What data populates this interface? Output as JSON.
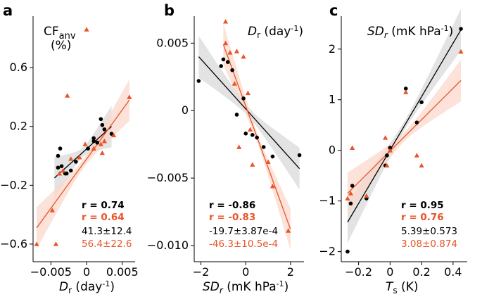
{
  "colors": {
    "black": "#000000",
    "orange": "#e8552a",
    "band_black": "#d9d9d9",
    "band_orange": "#fbd6c8"
  },
  "chart_data": [
    {
      "type": "scatter",
      "panel": "a",
      "title_main": "CF",
      "title_sub": "anv",
      "title_unit": "(%)",
      "xlabel_main": "D",
      "xlabel_sub": "r",
      "xlabel_unit": " (day",
      "xlabel_sup": "-1",
      "xlabel_close": ")",
      "xlim": [
        -0.0075,
        0.0068
      ],
      "ylim": [
        -0.72,
        0.95
      ],
      "xticks": [
        {
          "v": -0.005,
          "label": "−0.005"
        },
        {
          "v": 0.0,
          "label": "0"
        },
        {
          "v": 0.005,
          "label": "0.005"
        }
      ],
      "yticks": [
        {
          "v": -0.6,
          "label": "−0.6"
        },
        {
          "v": -0.2,
          "label": "−0.2"
        },
        {
          "v": 0.2,
          "label": "0.2"
        },
        {
          "v": 0.6,
          "label": "0.6"
        }
      ],
      "series": [
        {
          "name": "black",
          "marker": "circle",
          "points": [
            [
              -0.004,
              0.0
            ],
            [
              -0.0037,
              0.05
            ],
            [
              -0.004,
              -0.08
            ],
            [
              -0.0035,
              -0.07
            ],
            [
              -0.003,
              -0.12
            ],
            [
              -0.0028,
              -0.12
            ],
            [
              -0.0022,
              -0.1
            ],
            [
              -0.0015,
              -0.04
            ],
            [
              0.0002,
              0.05
            ],
            [
              0.001,
              0.1
            ],
            [
              0.001,
              0.12
            ],
            [
              0.0015,
              0.09
            ],
            [
              0.002,
              0.25
            ],
            [
              0.0022,
              0.21
            ],
            [
              0.0025,
              0.18
            ],
            [
              0.0035,
              0.15
            ]
          ],
          "fit": [
            [
              -0.0045,
              -0.15
            ],
            [
              0.0035,
              0.2
            ]
          ]
        },
        {
          "name": "orange",
          "marker": "triangle",
          "points": [
            [
              -0.007,
              -0.6
            ],
            [
              -0.0048,
              -0.37
            ],
            [
              -0.0043,
              -0.6
            ],
            [
              -0.0038,
              -0.12
            ],
            [
              -0.0033,
              -0.1
            ],
            [
              -0.0027,
              0.41
            ],
            [
              -0.0022,
              -0.02
            ],
            [
              -0.001,
              -0.01
            ],
            [
              -0.0002,
              0.08
            ],
            [
              0.0,
              0.86
            ],
            [
              0.001,
              0.05
            ],
            [
              0.002,
              0.08
            ],
            [
              0.0022,
              0.02
            ],
            [
              0.0025,
              0.1
            ],
            [
              0.0038,
              0.14
            ],
            [
              0.006,
              0.4
            ]
          ],
          "fit": [
            [
              -0.007,
              -0.49
            ],
            [
              0.006,
              0.38
            ]
          ]
        }
      ],
      "stats": {
        "r_black": "r = 0.74",
        "r_orange": "r = 0.64",
        "slope_black": "41.3±12.4",
        "slope_orange": "56.4±22.6"
      }
    },
    {
      "type": "scatter",
      "panel": "b",
      "title_main": "D",
      "title_sub": "r",
      "title_unit": " (day",
      "title_sup": "-1",
      "title_close": ")",
      "xlabel_main": "SD",
      "xlabel_sub": "r",
      "xlabel_unit": " (mK hPa",
      "xlabel_sup": "-1",
      "xlabel_close": ")",
      "xlim": [
        -2.3,
        2.6
      ],
      "ylim": [
        -0.0112,
        0.007
      ],
      "xticks": [
        {
          "v": -2,
          "label": "−2"
        },
        {
          "v": 0,
          "label": "0"
        },
        {
          "v": 2,
          "label": "2"
        }
      ],
      "yticks": [
        {
          "v": 0.005,
          "label": "0.005"
        },
        {
          "v": 0.0,
          "label": "0"
        },
        {
          "v": -0.005,
          "label": "−0.005"
        },
        {
          "v": -0.01,
          "label": "−0.010"
        }
      ],
      "series": [
        {
          "name": "black",
          "marker": "circle",
          "points": [
            [
              -2.1,
              0.0022
            ],
            [
              -1.1,
              0.0033
            ],
            [
              -1.0,
              0.0038
            ],
            [
              -0.8,
              0.0036
            ],
            [
              -0.6,
              0.003
            ],
            [
              -0.4,
              -0.0003
            ],
            [
              -0.1,
              0.0009
            ],
            [
              0.0,
              -0.0017
            ],
            [
              0.3,
              -0.0018
            ],
            [
              0.5,
              -0.002
            ],
            [
              0.8,
              -0.0027
            ],
            [
              1.2,
              -0.0034
            ],
            [
              2.4,
              -0.0033
            ]
          ],
          "fit": [
            [
              -2.1,
              0.004
            ],
            [
              2.4,
              -0.0043
            ]
          ]
        },
        {
          "name": "orange",
          "marker": "triangle",
          "points": [
            [
              -0.9,
              0.0066
            ],
            [
              -0.9,
              0.005
            ],
            [
              -0.7,
              0.0043
            ],
            [
              -0.5,
              0.002
            ],
            [
              -0.4,
              0.0044
            ],
            [
              -0.3,
              -0.0027
            ],
            [
              -0.1,
              0.004
            ],
            [
              0.1,
              0.0013
            ],
            [
              0.2,
              -0.0014
            ],
            [
              0.3,
              -0.004
            ],
            [
              1.0,
              -0.0038
            ],
            [
              1.2,
              -0.0056
            ],
            [
              1.9,
              -0.0089
            ]
          ],
          "fit": [
            [
              -1.0,
              0.0049
            ],
            [
              2.0,
              -0.0088
            ]
          ]
        }
      ],
      "stats": {
        "r_black": "r = -0.86",
        "r_orange": "r = -0.83",
        "slope_black": "-19.7±3.87e-4",
        "slope_orange": "-46.3±10.5e-4"
      }
    },
    {
      "type": "scatter",
      "panel": "c",
      "title_main": "SD",
      "title_sub": "r",
      "title_unit": " (mK hPa",
      "title_sup": "-1",
      "title_close": ")",
      "xlabel_main": "T",
      "xlabel_sub": "s",
      "xlabel_unit": " (K)",
      "xlim": [
        -0.31,
        0.49
      ],
      "ylim": [
        -2.2,
        2.65
      ],
      "xticks": [
        {
          "v": -0.2,
          "label": "−0.2"
        },
        {
          "v": 0.0,
          "label": "0"
        },
        {
          "v": 0.2,
          "label": "0.2"
        },
        {
          "v": 0.4,
          "label": "0.4"
        }
      ],
      "yticks": [
        {
          "v": 2,
          "label": "2"
        },
        {
          "v": 1,
          "label": "1"
        },
        {
          "v": 0,
          "label": "0"
        },
        {
          "v": -1,
          "label": "−1"
        },
        {
          "v": -2,
          "label": "−2"
        }
      ],
      "series": [
        {
          "name": "black",
          "marker": "circle",
          "points": [
            [
              -0.27,
              -2.0
            ],
            [
              -0.25,
              -1.05
            ],
            [
              -0.24,
              -0.7
            ],
            [
              -0.15,
              -0.95
            ],
            [
              -0.03,
              -0.3
            ],
            [
              -0.02,
              -0.1
            ],
            [
              0.0,
              0.05
            ],
            [
              0.1,
              1.22
            ],
            [
              0.17,
              0.55
            ],
            [
              0.2,
              0.95
            ],
            [
              0.45,
              2.4
            ]
          ],
          "fit": [
            [
              -0.27,
              -1.42
            ],
            [
              0.45,
              2.38
            ]
          ]
        },
        {
          "name": "orange",
          "marker": "triangle",
          "points": [
            [
              -0.27,
              -0.95
            ],
            [
              -0.25,
              -0.85
            ],
            [
              -0.24,
              0.05
            ],
            [
              -0.15,
              -0.9
            ],
            [
              -0.03,
              0.25
            ],
            [
              -0.02,
              -0.3
            ],
            [
              0.0,
              0.0
            ],
            [
              0.1,
              1.15
            ],
            [
              0.17,
              -0.1
            ],
            [
              0.2,
              -0.3
            ],
            [
              0.45,
              1.95
            ]
          ],
          "fit": [
            [
              -0.27,
              -0.85
            ],
            [
              0.45,
              1.38
            ]
          ]
        }
      ],
      "stats": {
        "r_black": "r = 0.95",
        "r_orange": "r = 0.76",
        "slope_black": "5.39±0.573",
        "slope_orange": "3.08±0.874"
      }
    }
  ]
}
